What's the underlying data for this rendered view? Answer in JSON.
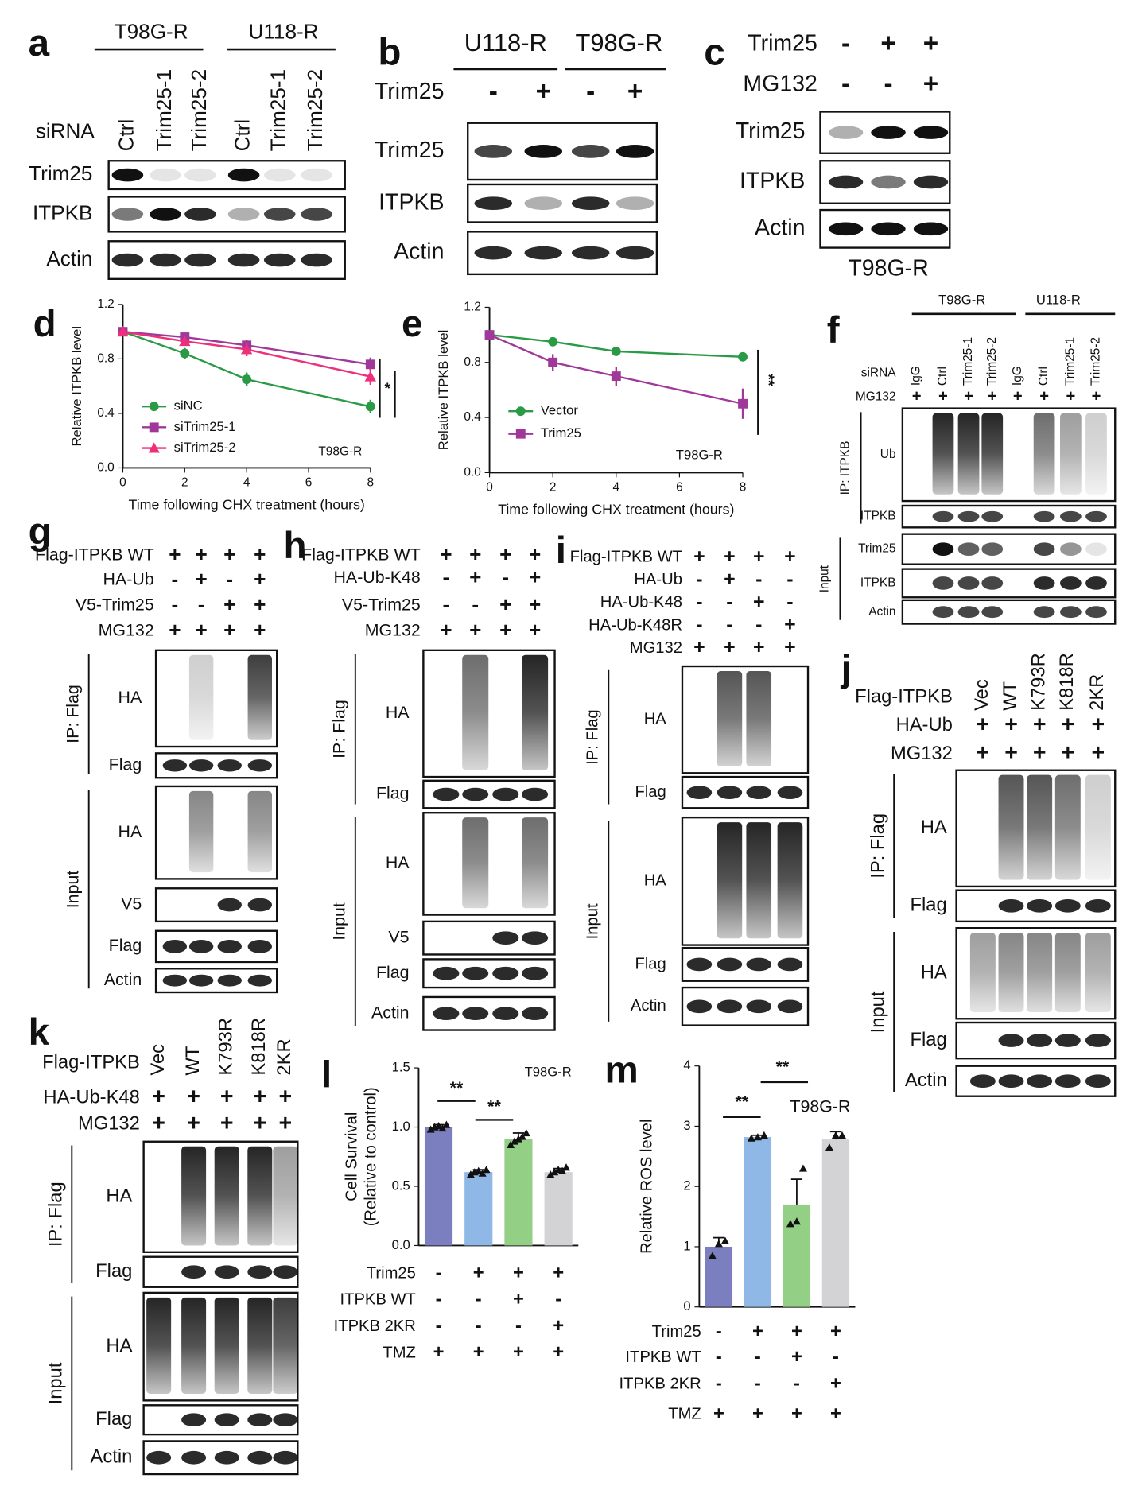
{
  "panels": {
    "a": {
      "letter": "a",
      "groups": [
        "T98G-R",
        "U118-R"
      ],
      "lane_header": "siRNA",
      "lanes": [
        "Ctrl",
        "Trim25-1",
        "Trim25-2",
        "Ctrl",
        "Trim25-1",
        "Trim25-2"
      ],
      "sections": [
        {
          "rows": [
            "Trim25",
            "ITPKB",
            "Actin"
          ]
        }
      ]
    },
    "b": {
      "letter": "b",
      "groups": [
        "U118-R",
        "T98G-R"
      ],
      "conditions": [
        {
          "label": "Trim25",
          "signs": [
            "-",
            "+",
            "-",
            "+"
          ]
        }
      ],
      "sections": [
        {
          "rows": [
            "Trim25",
            "ITPKB",
            "Actin"
          ]
        }
      ]
    },
    "c": {
      "letter": "c",
      "conditions": [
        {
          "label": "Trim25",
          "signs": [
            "-",
            "+",
            "+"
          ]
        },
        {
          "label": "MG132",
          "signs": [
            "-",
            "-",
            "+"
          ]
        }
      ],
      "sections": [
        {
          "rows": [
            "Trim25",
            "ITPKB",
            "Actin"
          ]
        }
      ],
      "cell_line": "T98G-R"
    },
    "f": {
      "letter": "f",
      "groups": [
        "T98G-R",
        "U118-R"
      ],
      "lane_header": "siRNA",
      "lanes": [
        "IgG",
        "Ctrl",
        "Trim25-1",
        "Trim25-2",
        "IgG",
        "Ctrl",
        "Trim25-1",
        "Trim25-2"
      ],
      "conditions": [
        {
          "label": "MG132",
          "signs": [
            "+",
            "+",
            "+",
            "+",
            "+",
            "+",
            "+",
            "+"
          ]
        }
      ],
      "sections": [
        {
          "label": "IP: ITPKB",
          "rows": [
            "Ub",
            "ITPKB"
          ]
        },
        {
          "label": "Input",
          "rows": [
            "Trim25",
            "ITPKB",
            "Actin"
          ]
        }
      ]
    },
    "g": {
      "letter": "g",
      "conditions": [
        {
          "label": "Flag-ITPKB WT",
          "signs": [
            "+",
            "+",
            "+",
            "+"
          ]
        },
        {
          "label": "HA-Ub",
          "signs": [
            "-",
            "+",
            "-",
            "+"
          ]
        },
        {
          "label": "V5-Trim25",
          "signs": [
            "-",
            "-",
            "+",
            "+"
          ]
        },
        {
          "label": "MG132",
          "signs": [
            "+",
            "+",
            "+",
            "+"
          ]
        }
      ],
      "sections": [
        {
          "label": "IP: Flag",
          "rows": [
            "HA",
            "Flag"
          ]
        },
        {
          "label": "Input",
          "rows": [
            "HA",
            "V5",
            "Flag",
            "Actin"
          ]
        }
      ]
    },
    "h": {
      "letter": "h",
      "conditions": [
        {
          "label": "Flag-ITPKB WT",
          "signs": [
            "+",
            "+",
            "+",
            "+"
          ]
        },
        {
          "label": "HA-Ub-K48",
          "signs": [
            "-",
            "+",
            "-",
            "+"
          ]
        },
        {
          "label": "V5-Trim25",
          "signs": [
            "-",
            "-",
            "+",
            "+"
          ]
        },
        {
          "label": "MG132",
          "signs": [
            "+",
            "+",
            "+",
            "+"
          ]
        }
      ],
      "sections": [
        {
          "label": "IP: Flag",
          "rows": [
            "HA",
            "Flag"
          ]
        },
        {
          "label": "Input",
          "rows": [
            "HA",
            "V5",
            "Flag",
            "Actin"
          ]
        }
      ]
    },
    "i": {
      "letter": "i",
      "conditions": [
        {
          "label": "Flag-ITPKB WT",
          "signs": [
            "+",
            "+",
            "+",
            "+"
          ]
        },
        {
          "label": "HA-Ub",
          "signs": [
            "-",
            "+",
            "-",
            "-"
          ]
        },
        {
          "label": "HA-Ub-K48",
          "signs": [
            "-",
            "-",
            "+",
            "-"
          ]
        },
        {
          "label": "HA-Ub-K48R",
          "signs": [
            "-",
            "-",
            "-",
            "+"
          ]
        },
        {
          "label": "MG132",
          "signs": [
            "+",
            "+",
            "+",
            "+"
          ]
        }
      ],
      "sections": [
        {
          "label": "IP: Flag",
          "rows": [
            "HA",
            "Flag"
          ]
        },
        {
          "label": "Input",
          "rows": [
            "HA",
            "Flag",
            "Actin"
          ]
        }
      ]
    },
    "j": {
      "letter": "j",
      "lane_header": "Flag-ITPKB",
      "lanes": [
        "Vec",
        "WT",
        "K793R",
        "K818R",
        "2KR"
      ],
      "conditions": [
        {
          "label": "HA-Ub",
          "signs": [
            "+",
            "+",
            "+",
            "+",
            "+"
          ]
        },
        {
          "label": "MG132",
          "signs": [
            "+",
            "+",
            "+",
            "+",
            "+"
          ]
        }
      ],
      "sections": [
        {
          "label": "IP: Flag",
          "rows": [
            "HA",
            "Flag"
          ]
        },
        {
          "label": "Input",
          "rows": [
            "HA",
            "Flag",
            "Actin"
          ]
        }
      ]
    },
    "k": {
      "letter": "k",
      "lane_header": "Flag-ITPKB",
      "lanes": [
        "Vec",
        "WT",
        "K793R",
        "K818R",
        "2KR"
      ],
      "conditions": [
        {
          "label": "HA-Ub-K48",
          "signs": [
            "+",
            "+",
            "+",
            "+",
            "+"
          ]
        },
        {
          "label": "MG132",
          "signs": [
            "+",
            "+",
            "+",
            "+",
            "+"
          ]
        }
      ],
      "sections": [
        {
          "label": "IP: Flag",
          "rows": [
            "HA",
            "Flag"
          ]
        },
        {
          "label": "Input",
          "rows": [
            "HA",
            "Flag",
            "Actin"
          ]
        }
      ]
    }
  },
  "chart_data": [
    {
      "type": "line",
      "letter": "d",
      "ylabel": "Relative ITPKB level",
      "xlabel": "Time following CHX treatment (hours)",
      "x": [
        0,
        2,
        4,
        8
      ],
      "xlim": [
        0,
        8
      ],
      "xticks": [
        0,
        2,
        4,
        6,
        8
      ],
      "ylim": [
        0,
        1.2
      ],
      "yticks": [
        {
          "value": 0,
          "label": "0.0"
        },
        0.4,
        0.8,
        1.2
      ],
      "legend": "lower-left",
      "series": [
        {
          "name": "siNC",
          "color": "#2a9a46",
          "marker": "circle",
          "values": [
            1,
            0.84,
            0.65,
            0.45
          ],
          "errors": [
            0,
            0.04,
            0.05,
            0.05
          ]
        },
        {
          "name": "siTrim25-1",
          "color": "#a0389a",
          "marker": "square",
          "values": [
            1,
            0.96,
            0.9,
            0.76
          ],
          "errors": [
            0,
            0.03,
            0.04,
            0.05
          ]
        },
        {
          "name": "siTrim25-2",
          "color": "#ee2f7c",
          "marker": "triangle",
          "values": [
            1,
            0.93,
            0.87,
            0.67
          ],
          "errors": [
            0,
            0.03,
            0.05,
            0.06
          ]
        }
      ],
      "annotations": [
        "T98G-R",
        "*"
      ]
    },
    {
      "type": "line",
      "letter": "e",
      "ylabel": "Relative ITPKB level",
      "xlabel": "Time following CHX treatment (hours)",
      "x": [
        0,
        2,
        4,
        8
      ],
      "xlim": [
        0,
        8
      ],
      "xticks": [
        0,
        2,
        4,
        6,
        8
      ],
      "ylim": [
        0,
        1.2
      ],
      "yticks": [
        {
          "value": 0,
          "label": "0.0"
        },
        0.4,
        0.8,
        1.2
      ],
      "legend": "lower-left",
      "series": [
        {
          "name": "Vector",
          "color": "#2a9a46",
          "marker": "circle",
          "values": [
            1,
            0.95,
            0.88,
            0.84
          ],
          "errors": [
            0,
            0.02,
            0.02,
            0.01
          ]
        },
        {
          "name": "Trim25",
          "color": "#a0389a",
          "marker": "square",
          "values": [
            1,
            0.8,
            0.7,
            0.5
          ],
          "errors": [
            0,
            0.06,
            0.07,
            0.11
          ]
        }
      ],
      "annotations": [
        "T98G-R",
        "**"
      ]
    },
    {
      "type": "bar",
      "letter": "l",
      "ylabel": [
        "Cell Survival",
        "(Relative to control)"
      ],
      "ylim": [
        0,
        1.5
      ],
      "yticks": [
        {
          "value": 0,
          "label": "0.0"
        },
        0.5,
        {
          "value": 1,
          "label": "1.0"
        },
        1.5
      ],
      "values": [
        1,
        0.62,
        0.9,
        0.62
      ],
      "errors": [
        0.02,
        0.02,
        0.05,
        0.03
      ],
      "colors": [
        "#7b7fbf",
        "#8fb8e6",
        "#93cf84",
        "#d3d3d6"
      ],
      "points": [
        [
          0.98,
          1.0,
          1.01,
          0.99,
          1.02
        ],
        [
          0.6,
          0.62,
          0.63,
          0.61,
          0.64
        ],
        [
          0.85,
          0.88,
          0.9,
          0.92,
          0.95
        ],
        [
          0.6,
          0.62,
          0.64,
          0.63,
          0.66
        ]
      ],
      "conditions": [
        {
          "label": "Trim25",
          "signs": [
            "-",
            "+",
            "+",
            "+"
          ]
        },
        {
          "label": "ITPKB WT",
          "signs": [
            "-",
            "-",
            "+",
            "-"
          ]
        },
        {
          "label": "ITPKB 2KR",
          "signs": [
            "-",
            "-",
            "-",
            "+"
          ]
        },
        {
          "label": "TMZ",
          "signs": [
            "+",
            "+",
            "+",
            "+"
          ]
        }
      ],
      "annotations": [
        "T98G-R",
        "**",
        "**"
      ]
    },
    {
      "type": "bar",
      "letter": "m",
      "ylabel": [
        "Relative ROS level"
      ],
      "ylim": [
        0,
        4
      ],
      "yticks": [
        0,
        1,
        2,
        3,
        4
      ],
      "values": [
        1,
        2.82,
        1.7,
        2.78
      ],
      "errors": [
        0.15,
        0.03,
        0.42,
        0.13
      ],
      "colors": [
        "#7b7fbf",
        "#8fb8e6",
        "#93cf84",
        "#d3d3d6"
      ],
      "points": [
        [
          0.85,
          1.05,
          1.1
        ],
        [
          2.8,
          2.82,
          2.85
        ],
        [
          1.38,
          1.42,
          2.3
        ],
        [
          2.65,
          2.85,
          2.85
        ]
      ],
      "conditions": [
        {
          "label": "Trim25",
          "signs": [
            "-",
            "+",
            "+",
            "+"
          ]
        },
        {
          "label": "ITPKB WT",
          "signs": [
            "-",
            "-",
            "+",
            "-"
          ]
        },
        {
          "label": "ITPKB 2KR",
          "signs": [
            "-",
            "-",
            "-",
            "+"
          ]
        },
        {
          "label": "TMZ",
          "signs": [
            "+",
            "+",
            "+",
            "+"
          ]
        }
      ],
      "annotations": [
        "T98G-R",
        "**",
        "**"
      ]
    }
  ]
}
